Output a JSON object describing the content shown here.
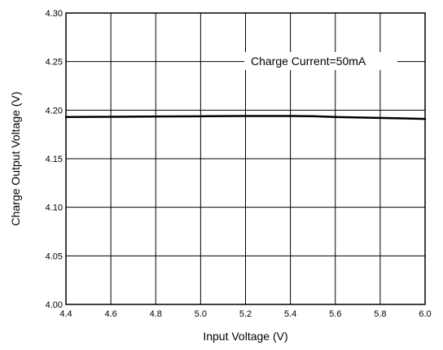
{
  "chart_data": {
    "type": "line",
    "title": "",
    "xlabel": "Input Voltage (V)",
    "ylabel": "Charge Output Voltage (V)",
    "xlim": [
      4.4,
      6.0
    ],
    "ylim": [
      4.0,
      4.3
    ],
    "xticks": [
      "4.4",
      "4.6",
      "4.8",
      "5.0",
      "5.2",
      "5.4",
      "5.6",
      "5.8",
      "6.0"
    ],
    "yticks": [
      "4.00",
      "4.05",
      "4.10",
      "4.15",
      "4.20",
      "4.25",
      "4.30"
    ],
    "grid": true,
    "annotation": "Charge Current=50mA",
    "series": [
      {
        "color": "#000000",
        "x": [
          4.4,
          4.6,
          4.8,
          5.0,
          5.2,
          5.4,
          5.5,
          5.6,
          5.8,
          6.0
        ],
        "y": [
          4.193,
          4.1932,
          4.1935,
          4.1937,
          4.194,
          4.194,
          4.1938,
          4.193,
          4.192,
          4.191
        ]
      }
    ]
  }
}
